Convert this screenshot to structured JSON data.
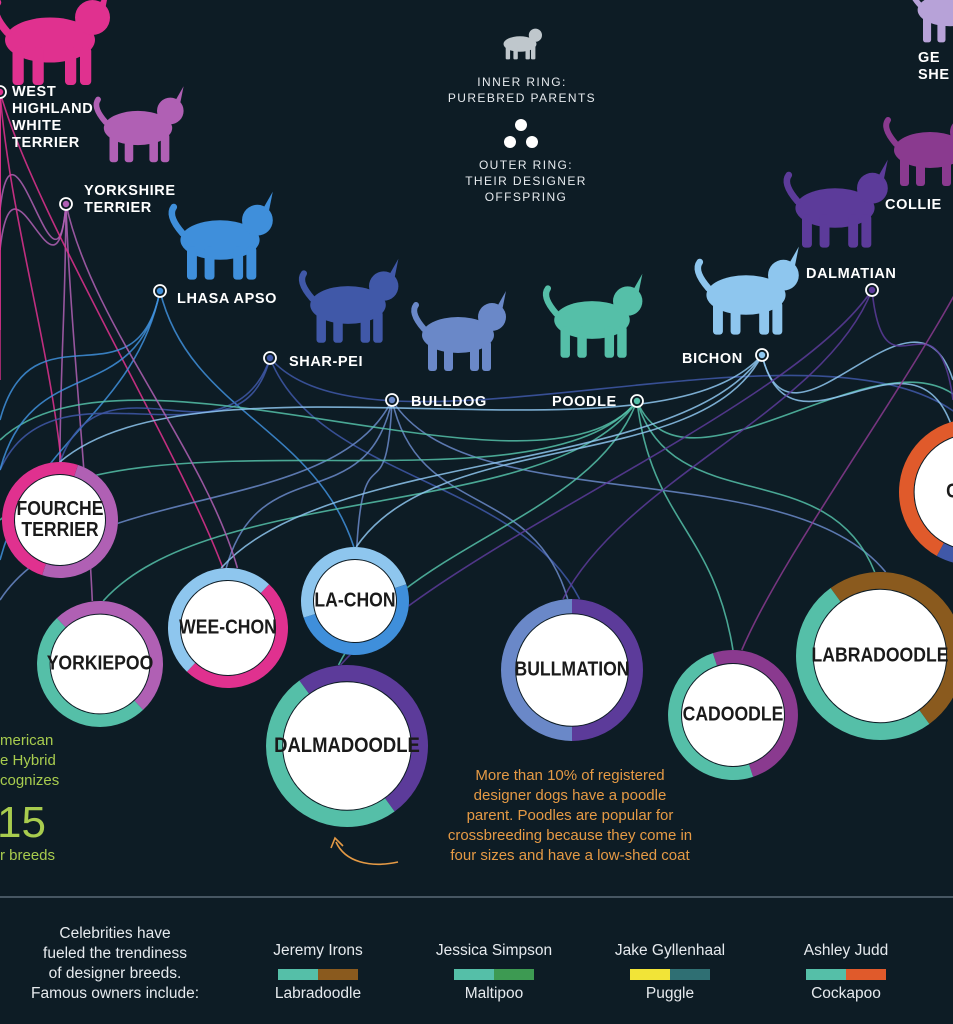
{
  "purebreds": [
    {
      "id": "westie",
      "label": "WEST\nHIGHLAND\nWHITE\nTERRIER",
      "color": "#e0318f",
      "icon": "west-highland-terrier-silhouette"
    },
    {
      "id": "yorkie",
      "label": "YORKSHIRE\nTERRIER",
      "color": "#b060b4",
      "icon": "yorkshire-terrier-silhouette"
    },
    {
      "id": "lhasa",
      "label": "LHASA APSO",
      "color": "#3f8fdb",
      "icon": "lhasa-apso-silhouette"
    },
    {
      "id": "sharpei",
      "label": "SHAR-PEI",
      "color": "#4058a8",
      "icon": "shar-pei-silhouette"
    },
    {
      "id": "bulldog",
      "label": "BULLDOG",
      "color": "#6a88c8",
      "icon": "bulldog-silhouette"
    },
    {
      "id": "poodle",
      "label": "POODLE",
      "color": "#55bfa8",
      "icon": "poodle-silhouette"
    },
    {
      "id": "bichon",
      "label": "BICHON",
      "color": "#8ec6ee",
      "icon": "bichon-silhouette"
    },
    {
      "id": "dalmatian",
      "label": "DALMATIAN",
      "color": "#5c3b9a",
      "icon": "dalmatian-silhouette"
    },
    {
      "id": "collie",
      "label": "COLLIE",
      "color": "#8a3a8f",
      "icon": "collie-silhouette"
    },
    {
      "id": "shepherd",
      "label": "GE\nSHE",
      "color": "#b7a2d8",
      "icon": "german-shepherd-silhouette"
    }
  ],
  "legend": {
    "inner": "INNER RING:\nPUREBRED PARENTS",
    "outer": "OUTER RING:\nTHEIR DESIGNER\nOFFSPRING",
    "dog_icon": "dog-icon",
    "dots_icon": "three-dots-icon"
  },
  "hybrids": [
    {
      "id": "fourche",
      "label": "FOURCHE\nTERRIER",
      "colors": [
        "#b060b4",
        "#e0318f"
      ]
    },
    {
      "id": "yorkiepoo",
      "label": "YORKIEPOO",
      "colors": [
        "#b060b4",
        "#55bfa8"
      ]
    },
    {
      "id": "weechon",
      "label": "WEE-CHON",
      "colors": [
        "#e0318f",
        "#8ec6ee"
      ]
    },
    {
      "id": "lachon",
      "label": "LA-CHON",
      "colors": [
        "#3f8fdb",
        "#8ec6ee"
      ]
    },
    {
      "id": "dalmadoodle",
      "label": "DALMADOODLE",
      "colors": [
        "#5c3b9a",
        "#55bfa8"
      ]
    },
    {
      "id": "bullmation",
      "label": "BULLMATION",
      "colors": [
        "#5c3b9a",
        "#6a88c8"
      ]
    },
    {
      "id": "cadoodle",
      "label": "CADOODLE",
      "colors": [
        "#8a3a8f",
        "#55bfa8"
      ]
    },
    {
      "id": "labradoodle",
      "label": "LABRADOODLE",
      "colors": [
        "#8a5a1e",
        "#55bfa8"
      ]
    },
    {
      "id": "cockapoo",
      "label": "COCK",
      "colors": [
        "#e05a2b",
        "#4058a8"
      ]
    }
  ],
  "poodle_note": "More than 10% of registered\ndesigner dogs have a poodle\nparent. Poodles are popular for\ncrossbreeding because they come in\nfour sizes and have a low-shed coat",
  "stat": {
    "line1": "merican",
    "line2": "e Hybrid",
    "line3": "cognizes",
    "number": "15",
    "line4": "r breeds"
  },
  "celebrities": {
    "intro": "Celebrities have\nfueled the trendiness\nof designer breeds.\nFamous owners include:",
    "owners": [
      {
        "name": "Jeremy Irons",
        "dog": "Labradoodle",
        "colors": [
          "#55bfa8",
          "#8a5a1e"
        ]
      },
      {
        "name": "Jessica Simpson",
        "dog": "Maltipoo",
        "colors": [
          "#55bfa8",
          "#3d9a52"
        ]
      },
      {
        "name": "Jake Gyllenhaal",
        "dog": "Puggle",
        "colors": [
          "#f2e437",
          "#2f6f73"
        ]
      },
      {
        "name": "Ashley Judd",
        "dog": "Cockapoo",
        "colors": [
          "#55bfa8",
          "#e05a2b"
        ]
      }
    ]
  }
}
